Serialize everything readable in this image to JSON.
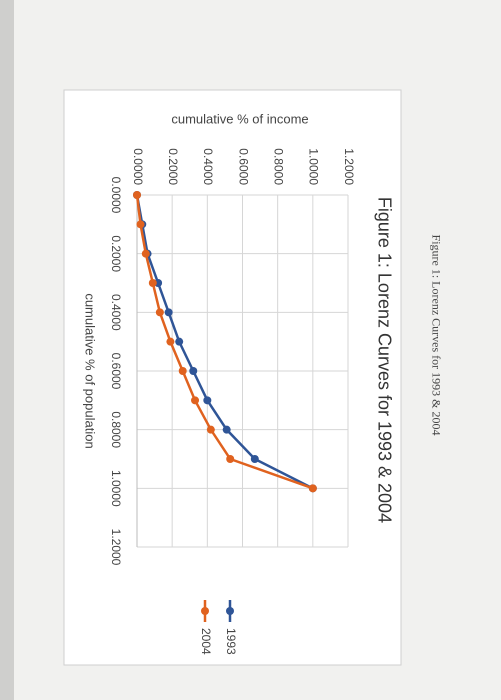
{
  "caption": "Figure 1: Lorenz Curves for 1993 & 2004",
  "chart_data": {
    "type": "line",
    "title": "Figure 1: Lorenz Curves for 1993 & 2004",
    "x_label": "cumulative % of population",
    "y_label": "cumulative % of income",
    "x": [
      0,
      0.1,
      0.2,
      0.3,
      0.4,
      0.5,
      0.6,
      0.7,
      0.8,
      0.9,
      1.0
    ],
    "series": [
      {
        "name": "1993",
        "color": "#2f5597",
        "values": [
          0,
          0.03,
          0.06,
          0.12,
          0.18,
          0.24,
          0.32,
          0.4,
          0.51,
          0.67,
          1.0
        ]
      },
      {
        "name": "2004",
        "color": "#e0621f",
        "values": [
          0,
          0.02,
          0.05,
          0.09,
          0.13,
          0.19,
          0.26,
          0.33,
          0.42,
          0.53,
          1.0
        ]
      }
    ],
    "xlim": [
      0,
      1.2
    ],
    "ylim": [
      0,
      1.2
    ],
    "xticks": [
      {
        "value": 0,
        "label": "0.0000"
      },
      {
        "value": 0.2,
        "label": "0.2000"
      },
      {
        "value": 0.4,
        "label": "0.4000"
      },
      {
        "value": 0.6,
        "label": "0.6000"
      },
      {
        "value": 0.8,
        "label": "0.8000"
      },
      {
        "value": 1.0,
        "label": "1.0000"
      },
      {
        "value": 1.2,
        "label": "1.2000"
      }
    ],
    "yticks": [
      {
        "value": 0,
        "label": "0.0000"
      },
      {
        "value": 0.2,
        "label": "0.2000"
      },
      {
        "value": 0.4,
        "label": "0.4000"
      },
      {
        "value": 0.6,
        "label": "0.6000"
      },
      {
        "value": 0.8,
        "label": "0.8000"
      },
      {
        "value": 1.0,
        "label": "1.0000"
      },
      {
        "value": 1.2,
        "label": "1.2000"
      }
    ],
    "grid": true,
    "legend": "right"
  }
}
